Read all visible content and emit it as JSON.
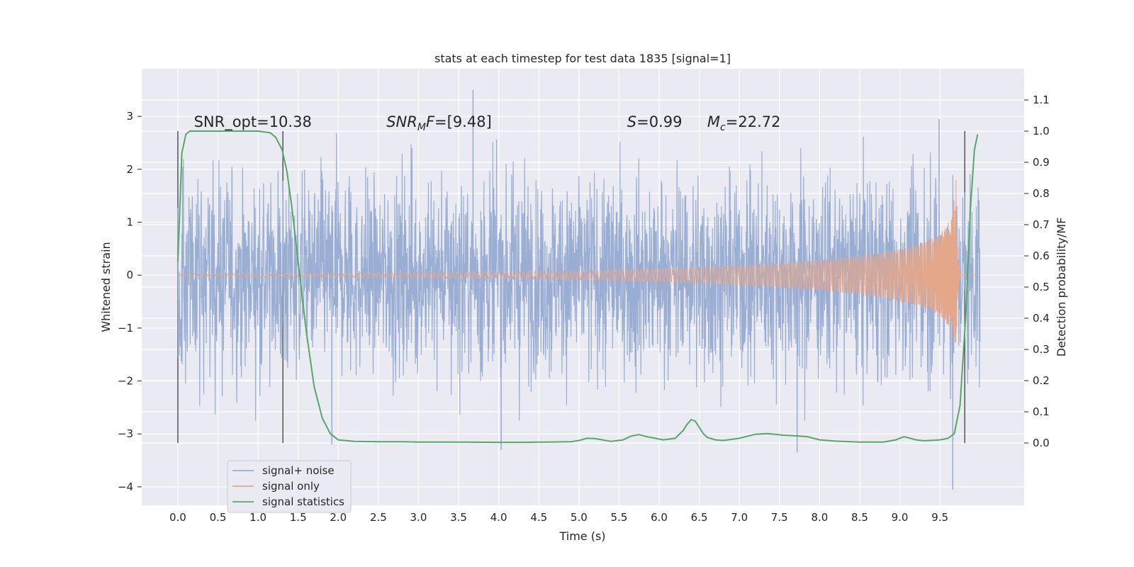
{
  "chart_data": {
    "type": "line",
    "title": "stats at each timestep for test data 1835 [signal=1]",
    "xlabel": "Time (s)",
    "ylabel": "Whitened strain",
    "y2label": "Detection probability/MF",
    "xlim": [
      -0.45,
      10.55
    ],
    "ylim": [
      -4.35,
      3.9
    ],
    "y2lim": [
      -0.2,
      1.2
    ],
    "x_ticks": [
      0.0,
      0.5,
      1.0,
      1.5,
      2.0,
      2.5,
      3.0,
      3.5,
      4.0,
      4.5,
      5.0,
      5.5,
      6.0,
      6.5,
      7.0,
      7.5,
      8.0,
      8.5,
      9.0,
      9.5
    ],
    "x_tick_labels": [
      "0.0",
      "0.5",
      "1.0",
      "1.5",
      "2.0",
      "2.5",
      "3.0",
      "3.5",
      "4.0",
      "4.5",
      "5.0",
      "5.5",
      "6.0",
      "6.5",
      "7.0",
      "7.5",
      "8.0",
      "8.5",
      "9.0",
      "9.5"
    ],
    "y_ticks": [
      -4,
      -3,
      -2,
      -1,
      0,
      1,
      2,
      3
    ],
    "y_tick_labels": [
      "−4",
      "−3",
      "−2",
      "−1",
      "0",
      "1",
      "2",
      "3"
    ],
    "y2_ticks": [
      0.0,
      0.1,
      0.2,
      0.3,
      0.4,
      0.5,
      0.6,
      0.7,
      0.8,
      0.9,
      1.0,
      1.1
    ],
    "y2_tick_labels": [
      "0.0",
      "0.1",
      "0.2",
      "0.3",
      "0.4",
      "0.5",
      "0.6",
      "0.7",
      "0.8",
      "0.9",
      "1.0",
      "1.1"
    ],
    "grid": true,
    "legend_position": "lower-left",
    "colors": {
      "background": "#eaeaf2",
      "grid": "#ffffff",
      "noise": "#9aadd3",
      "signal": "#e5a78a",
      "stat": "#55a868",
      "vline": "#555555"
    },
    "annotations": [
      {
        "id": "snr-opt",
        "text": "SNR_opt=10.38",
        "x": 0.2
      },
      {
        "id": "snr-mf",
        "text": "=[9.48]",
        "base": "SNR",
        "sub": "M",
        "tail": "F",
        "x": 2.6
      },
      {
        "id": "s",
        "text": "=0.99",
        "base": "S",
        "x": 5.6
      },
      {
        "id": "mc",
        "text": "=22.72",
        "base": "M",
        "sub": "c",
        "x": 6.6
      }
    ],
    "vertical_lines": [
      0.0,
      1.31,
      9.81
    ],
    "series": [
      {
        "name": "signal+ noise",
        "axis": "left",
        "description_points": "dense whitened noise trace, roughly uniform amplitude between about -2.5 and +2.5 with occasional spikes",
        "x_range": [
          0.0,
          10.0
        ],
        "amplitude": 1.5,
        "extremes": [
          {
            "x": 3.68,
            "y": 3.5
          },
          {
            "x": 9.66,
            "y": -4.05
          },
          {
            "x": 9.49,
            "y": 2.95
          },
          {
            "x": 4.03,
            "y": -3.3
          },
          {
            "x": 7.72,
            "y": -3.35
          },
          {
            "x": 1.92,
            "y": -3.2
          }
        ]
      },
      {
        "name": "signal only",
        "axis": "left",
        "description_points": "chirp waveform near zero growing in amplitude and frequency toward merger",
        "x_range": [
          0.0,
          10.0
        ],
        "merger_time": 9.7,
        "peak_amplitude": 1.8
      },
      {
        "name": "signal statistics",
        "axis": "right",
        "x": [
          0.0,
          0.05,
          0.1,
          0.15,
          0.25,
          0.4,
          0.7,
          1.0,
          1.15,
          1.22,
          1.3,
          1.36,
          1.42,
          1.5,
          1.6,
          1.7,
          1.8,
          1.9,
          2.0,
          2.2,
          2.5,
          2.8,
          3.0,
          3.5,
          4.0,
          4.3,
          4.6,
          4.9,
          5.0,
          5.1,
          5.2,
          5.4,
          5.55,
          5.65,
          5.75,
          5.85,
          5.95,
          6.05,
          6.2,
          6.3,
          6.35,
          6.4,
          6.45,
          6.5,
          6.55,
          6.6,
          6.7,
          6.8,
          7.0,
          7.2,
          7.35,
          7.55,
          7.75,
          7.85,
          8.0,
          8.2,
          8.5,
          8.8,
          8.95,
          9.05,
          9.12,
          9.2,
          9.3,
          9.5,
          9.6,
          9.68,
          9.75,
          9.82,
          9.88,
          9.93,
          9.97
        ],
        "values": [
          0.58,
          0.93,
          0.99,
          1.0,
          1.0,
          1.0,
          1.0,
          1.0,
          0.995,
          0.98,
          0.94,
          0.87,
          0.76,
          0.58,
          0.36,
          0.18,
          0.08,
          0.03,
          0.01,
          0.005,
          0.004,
          0.004,
          0.003,
          0.003,
          0.002,
          0.002,
          0.003,
          0.004,
          0.008,
          0.015,
          0.014,
          0.005,
          0.01,
          0.022,
          0.027,
          0.02,
          0.015,
          0.01,
          0.015,
          0.04,
          0.06,
          0.075,
          0.07,
          0.05,
          0.03,
          0.018,
          0.01,
          0.008,
          0.015,
          0.028,
          0.03,
          0.025,
          0.022,
          0.02,
          0.01,
          0.006,
          0.003,
          0.003,
          0.01,
          0.02,
          0.016,
          0.01,
          0.007,
          0.01,
          0.015,
          0.03,
          0.12,
          0.4,
          0.75,
          0.94,
          0.99
        ]
      }
    ]
  }
}
